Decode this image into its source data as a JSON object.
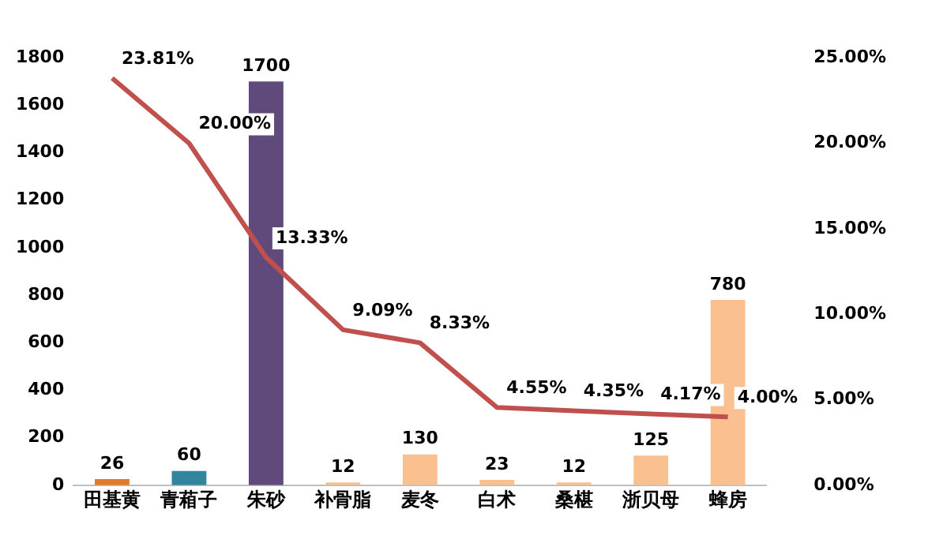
{
  "chart_data": {
    "type": "bar",
    "categories": [
      "田基黄",
      "青葙子",
      "朱砂",
      "补骨脂",
      "麦冬",
      "白术",
      "桑椹",
      "浙贝母",
      "蜂房"
    ],
    "series": [
      {
        "colors": [
          "#e07b29",
          "#31859c",
          "#604a7b",
          "#fac090",
          "#fac090",
          "#fac090",
          "#fac090",
          "#fac090",
          "#fac090"
        ],
        "values": [
          26,
          60,
          1700,
          12,
          130,
          23,
          12,
          125,
          780
        ],
        "value_labels": [
          "26",
          "60",
          "1700",
          "12",
          "130",
          "23",
          "12",
          "125",
          "780"
        ]
      },
      {
        "type": "line",
        "axis": "y2",
        "color": "#c0504d",
        "values": [
          23.81,
          20.0,
          13.33,
          9.09,
          8.33,
          4.55,
          4.35,
          4.17,
          4.0
        ],
        "value_labels": [
          "23.81%",
          "20.00%",
          "13.33%",
          "9.09%",
          "8.33%",
          "4.55%",
          "4.35%",
          "4.17%",
          "4.00%"
        ]
      }
    ],
    "ylim": [
      0,
      1800
    ],
    "yticks": [
      0,
      200,
      400,
      600,
      800,
      1000,
      1200,
      1400,
      1600,
      1800
    ],
    "y2lim": [
      0,
      25
    ],
    "y2ticks": [
      {
        "value": 0,
        "label": "0.00%"
      },
      {
        "value": 5,
        "label": "5.00%"
      },
      {
        "value": 10,
        "label": "10.00%"
      },
      {
        "value": 15,
        "label": "15.00%"
      },
      {
        "value": 20,
        "label": "20.00%"
      },
      {
        "value": 25,
        "label": "25.00%"
      }
    ],
    "grid": false,
    "legend": false,
    "marker": "none"
  }
}
